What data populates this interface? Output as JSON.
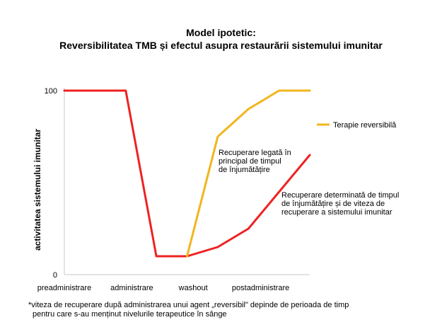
{
  "title_line1": "Model ipotetic:",
  "title_line2": "Reversibilitatea TMB și efectul asupra restaurării sistemului imunitar",
  "footnote_line1": "*viteza de recuperare după administrarea unui agent „reversibil\" depinde de perioada de timp",
  "footnote_line2": "pentru care s-au menținut nivelurile terapeutice în sânge",
  "chart_data": {
    "type": "line",
    "ylabel": "activitatea sistemului imunitar",
    "xlabel": "",
    "ylim": [
      0,
      100
    ],
    "xlim": [
      0,
      8
    ],
    "y_ticks": [
      0,
      100
    ],
    "x_tick_labels": [
      {
        "label": "preadministrare",
        "x": 0
      },
      {
        "label": "administrare",
        "x": 2.2
      },
      {
        "label": "washout",
        "x": 4.2
      },
      {
        "label": "postadministrare",
        "x": 6.4
      }
    ],
    "grid": false,
    "legend_position": "right",
    "series": [
      {
        "name": "",
        "color": "#ee2222",
        "points": [
          [
            0,
            100
          ],
          [
            2,
            100
          ],
          [
            3,
            10
          ],
          [
            4,
            10
          ],
          [
            5,
            15
          ],
          [
            6,
            25
          ],
          [
            8,
            65
          ]
        ]
      },
      {
        "name": "Terapie reversibilă",
        "color": "#f2b51d",
        "points": [
          [
            4,
            10
          ],
          [
            5,
            75
          ],
          [
            6,
            90
          ],
          [
            7,
            100
          ],
          [
            8,
            100
          ]
        ]
      }
    ],
    "annotations": [
      {
        "lines": [
          "Recuperare legată în",
          "principal de timpul",
          "de înjumătățire"
        ]
      },
      {
        "lines": [
          "Recuperare determinată de timpul",
          "de înjumătățire și de viteza de",
          "recuperare a sistemului imunitar"
        ]
      }
    ]
  }
}
